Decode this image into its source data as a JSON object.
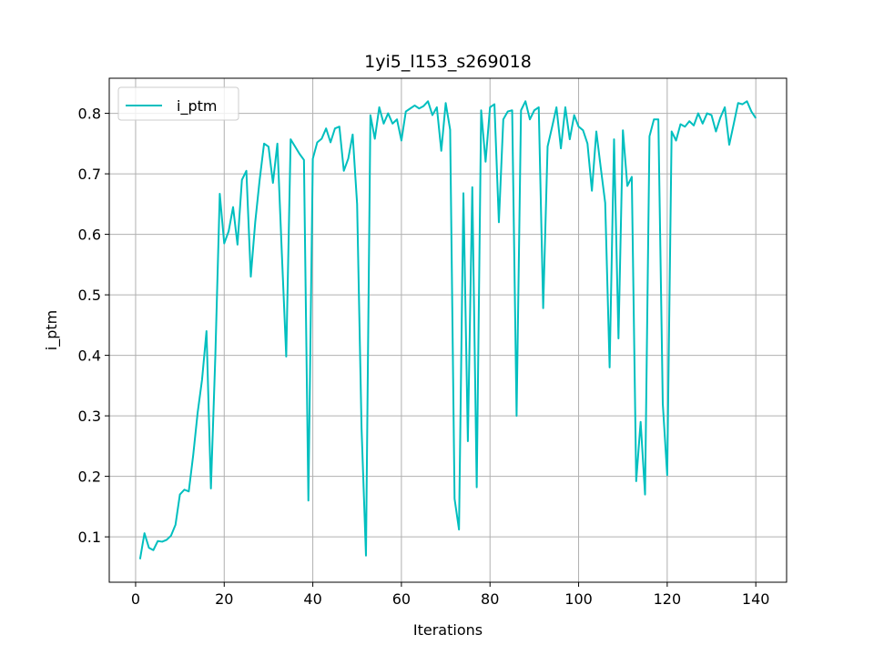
{
  "chart_data": {
    "type": "line",
    "title": "1yi5_l153_s269018",
    "xlabel": "Iterations",
    "ylabel": "i_ptm",
    "x": [
      1,
      2,
      3,
      4,
      5,
      6,
      7,
      8,
      9,
      10,
      11,
      12,
      13,
      14,
      15,
      16,
      17,
      18,
      19,
      20,
      21,
      22,
      23,
      24,
      25,
      26,
      27,
      28,
      29,
      30,
      31,
      32,
      33,
      34,
      35,
      36,
      37,
      38,
      39,
      40,
      41,
      42,
      43,
      44,
      45,
      46,
      47,
      48,
      49,
      50,
      51,
      52,
      53,
      54,
      55,
      56,
      57,
      58,
      59,
      60,
      61,
      62,
      63,
      64,
      65,
      66,
      67,
      68,
      69,
      70,
      71,
      72,
      73,
      74,
      75,
      76,
      77,
      78,
      79,
      80,
      81,
      82,
      83,
      84,
      85,
      86,
      87,
      88,
      89,
      90,
      91,
      92,
      93,
      94,
      95,
      96,
      97,
      98,
      99,
      100,
      101,
      102,
      103,
      104,
      105,
      106,
      107,
      108,
      109,
      110,
      111,
      112,
      113,
      114,
      115,
      116,
      117,
      118,
      119,
      120,
      121,
      122,
      123,
      124,
      125,
      126,
      127,
      128,
      129,
      130,
      131,
      132,
      133,
      134,
      135,
      136,
      137,
      138,
      139,
      140
    ],
    "series": [
      {
        "name": "i_ptm",
        "color": "#00bfbf",
        "values": [
          0.063,
          0.106,
          0.082,
          0.078,
          0.093,
          0.092,
          0.095,
          0.102,
          0.12,
          0.17,
          0.178,
          0.175,
          0.235,
          0.305,
          0.36,
          0.44,
          0.18,
          0.4,
          0.667,
          0.585,
          0.605,
          0.645,
          0.583,
          0.69,
          0.705,
          0.53,
          0.62,
          0.69,
          0.75,
          0.745,
          0.685,
          0.75,
          0.57,
          0.398,
          0.757,
          0.745,
          0.733,
          0.723,
          0.16,
          0.725,
          0.752,
          0.758,
          0.775,
          0.752,
          0.775,
          0.778,
          0.705,
          0.725,
          0.765,
          0.65,
          0.28,
          0.069,
          0.797,
          0.758,
          0.81,
          0.783,
          0.8,
          0.783,
          0.79,
          0.755,
          0.803,
          0.808,
          0.813,
          0.808,
          0.812,
          0.82,
          0.797,
          0.81,
          0.738,
          0.817,
          0.773,
          0.163,
          0.112,
          0.668,
          0.258,
          0.678,
          0.182,
          0.805,
          0.72,
          0.81,
          0.815,
          0.62,
          0.79,
          0.803,
          0.805,
          0.3,
          0.805,
          0.82,
          0.79,
          0.805,
          0.81,
          0.478,
          0.745,
          0.777,
          0.81,
          0.742,
          0.81,
          0.757,
          0.797,
          0.778,
          0.772,
          0.75,
          0.672,
          0.77,
          0.71,
          0.652,
          0.38,
          0.757,
          0.428,
          0.772,
          0.68,
          0.695,
          0.192,
          0.29,
          0.17,
          0.762,
          0.79,
          0.79,
          0.32,
          0.202,
          0.77,
          0.755,
          0.782,
          0.778,
          0.787,
          0.78,
          0.8,
          0.783,
          0.8,
          0.797,
          0.77,
          0.793,
          0.81,
          0.748,
          0.782,
          0.817,
          0.815,
          0.82,
          0.803,
          0.792
        ]
      }
    ],
    "xlim": [
      -5.95,
      146.95
    ],
    "xticks": [
      0,
      20,
      40,
      60,
      80,
      100,
      120,
      140
    ],
    "ylim": [
      0.025,
      0.858
    ],
    "yticks": [
      0.1,
      0.2,
      0.3,
      0.4,
      0.5,
      0.6,
      0.7,
      0.8
    ],
    "grid": true,
    "legend": "upper left"
  }
}
